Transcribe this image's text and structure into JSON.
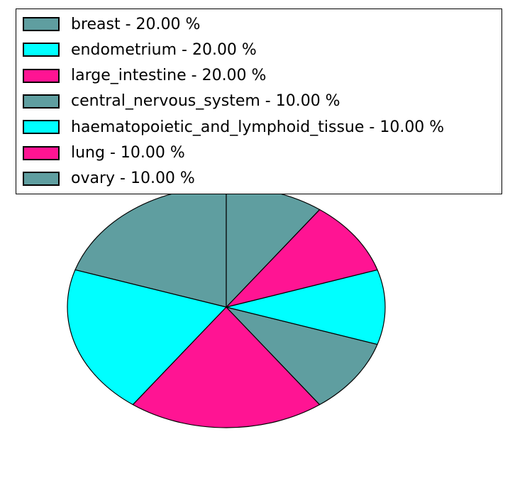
{
  "figure": {
    "background": "#ffffff"
  },
  "legend": {
    "position": "upper-left",
    "background": "#ffffff",
    "border_color": "#000000",
    "items": [
      {
        "label": "breast - 20.00 %",
        "color": "#5F9EA0"
      },
      {
        "label": "endometrium - 20.00 %",
        "color": "#00FFFF"
      },
      {
        "label": "large_intestine - 20.00 %",
        "color": "#FF1493"
      },
      {
        "label": "central_nervous_system - 10.00 %",
        "color": "#5F9EA0"
      },
      {
        "label": "haematopoietic_and_lymphoid_tissue - 10.00 %",
        "color": "#00FFFF"
      },
      {
        "label": "lung - 10.00 %",
        "color": "#FF1493"
      },
      {
        "label": "ovary - 10.00 %",
        "color": "#5F9EA0"
      }
    ]
  },
  "chart_data": {
    "type": "pie",
    "title": "",
    "categories": [
      "breast",
      "endometrium",
      "large_intestine",
      "central_nervous_system",
      "haematopoietic_and_lymphoid_tissue",
      "lung",
      "ovary"
    ],
    "values": [
      20,
      20,
      20,
      10,
      10,
      10,
      10
    ],
    "value_unit": "%",
    "value_format": "0.00",
    "colors": [
      "#5F9EA0",
      "#00FFFF",
      "#FF1493",
      "#5F9EA0",
      "#00FFFF",
      "#FF1493",
      "#5F9EA0"
    ],
    "edge_color": "#000000",
    "start_angle_deg": 90,
    "direction": "counterclockwise",
    "legend_position": "upper-left",
    "labels_on_slices": false
  }
}
